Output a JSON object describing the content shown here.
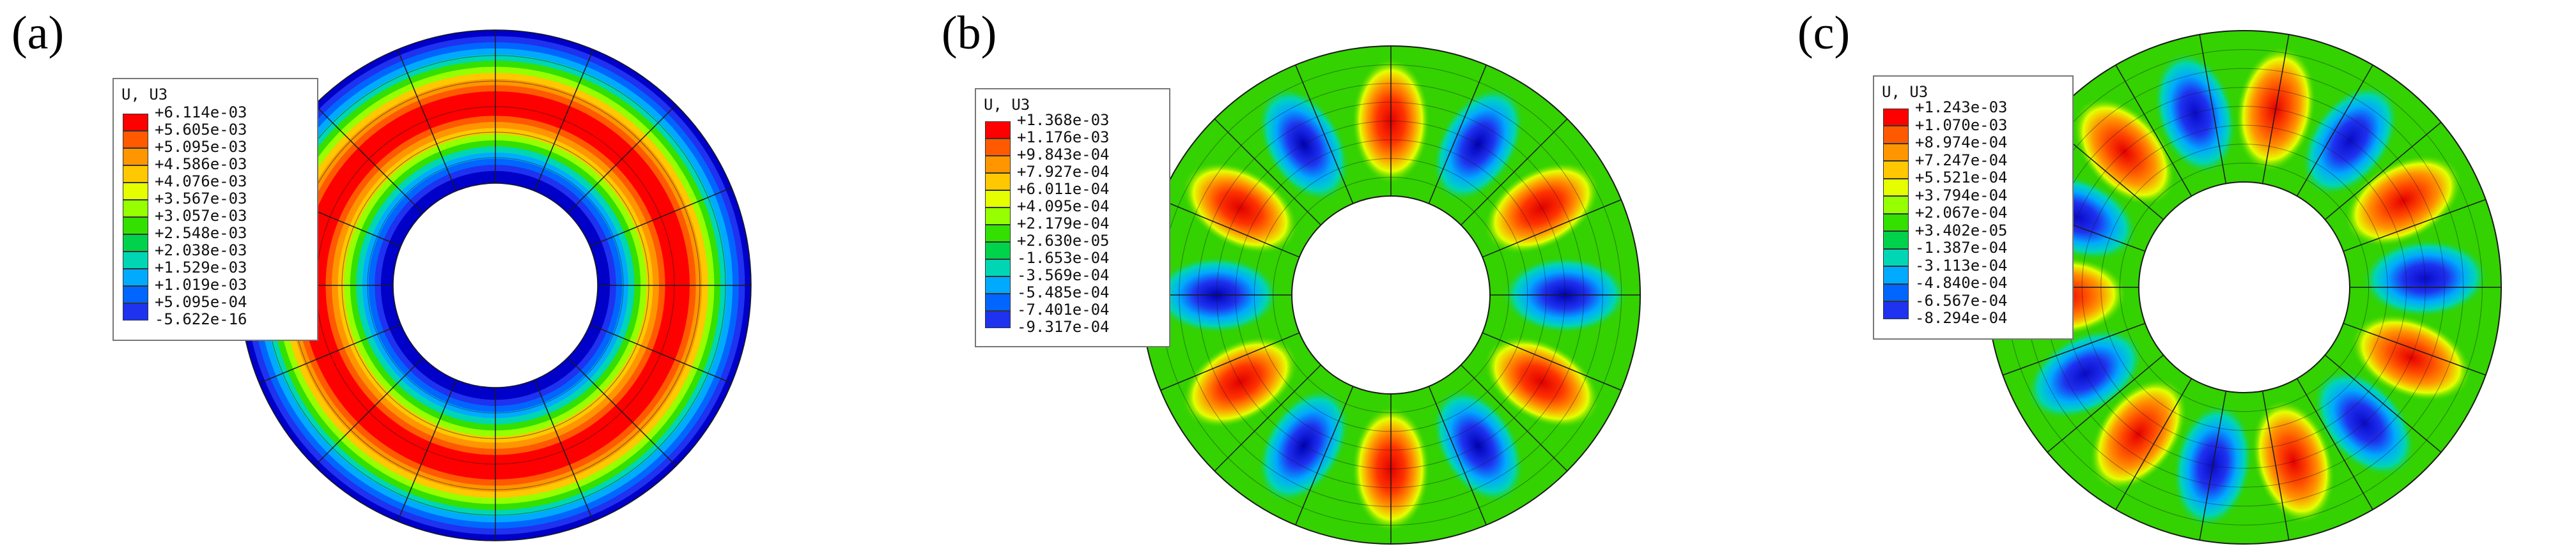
{
  "panels": [
    {
      "label": "(a)",
      "legend_title": "U, U3",
      "legend_values": [
        "+6.114e-03",
        "+5.605e-03",
        "+5.095e-03",
        "+4.586e-03",
        "+4.076e-03",
        "+3.567e-03",
        "+3.057e-03",
        "+2.548e-03",
        "+2.038e-03",
        "+1.529e-03",
        "+1.019e-03",
        "+5.095e-04",
        "-5.622e-16"
      ]
    },
    {
      "label": "(b)",
      "legend_title": "U, U3",
      "legend_values": [
        "+1.368e-03",
        "+1.176e-03",
        "+9.843e-04",
        "+7.927e-04",
        "+6.011e-04",
        "+4.095e-04",
        "+2.179e-04",
        "+2.630e-05",
        "-1.653e-04",
        "-3.569e-04",
        "-5.485e-04",
        "-7.401e-04",
        "-9.317e-04"
      ]
    },
    {
      "label": "(c)",
      "legend_title": "U, U3",
      "legend_values": [
        "+1.243e-03",
        "+1.070e-03",
        "+8.974e-04",
        "+7.247e-04",
        "+5.521e-04",
        "+3.794e-04",
        "+2.067e-04",
        "+3.402e-05",
        "-1.387e-04",
        "-3.113e-04",
        "-4.840e-04",
        "-6.567e-04",
        "-8.294e-04"
      ]
    }
  ],
  "colors": {
    "scale": [
      "#ff0000",
      "#ff5a00",
      "#ff9600",
      "#ffc800",
      "#e6ff00",
      "#96ff00",
      "#33e000",
      "#00d24b",
      "#00d6b4",
      "#00aaff",
      "#0066ff",
      "#1e32f0",
      "#0000c8"
    ],
    "mesh_line": "#1a1a1a"
  }
}
